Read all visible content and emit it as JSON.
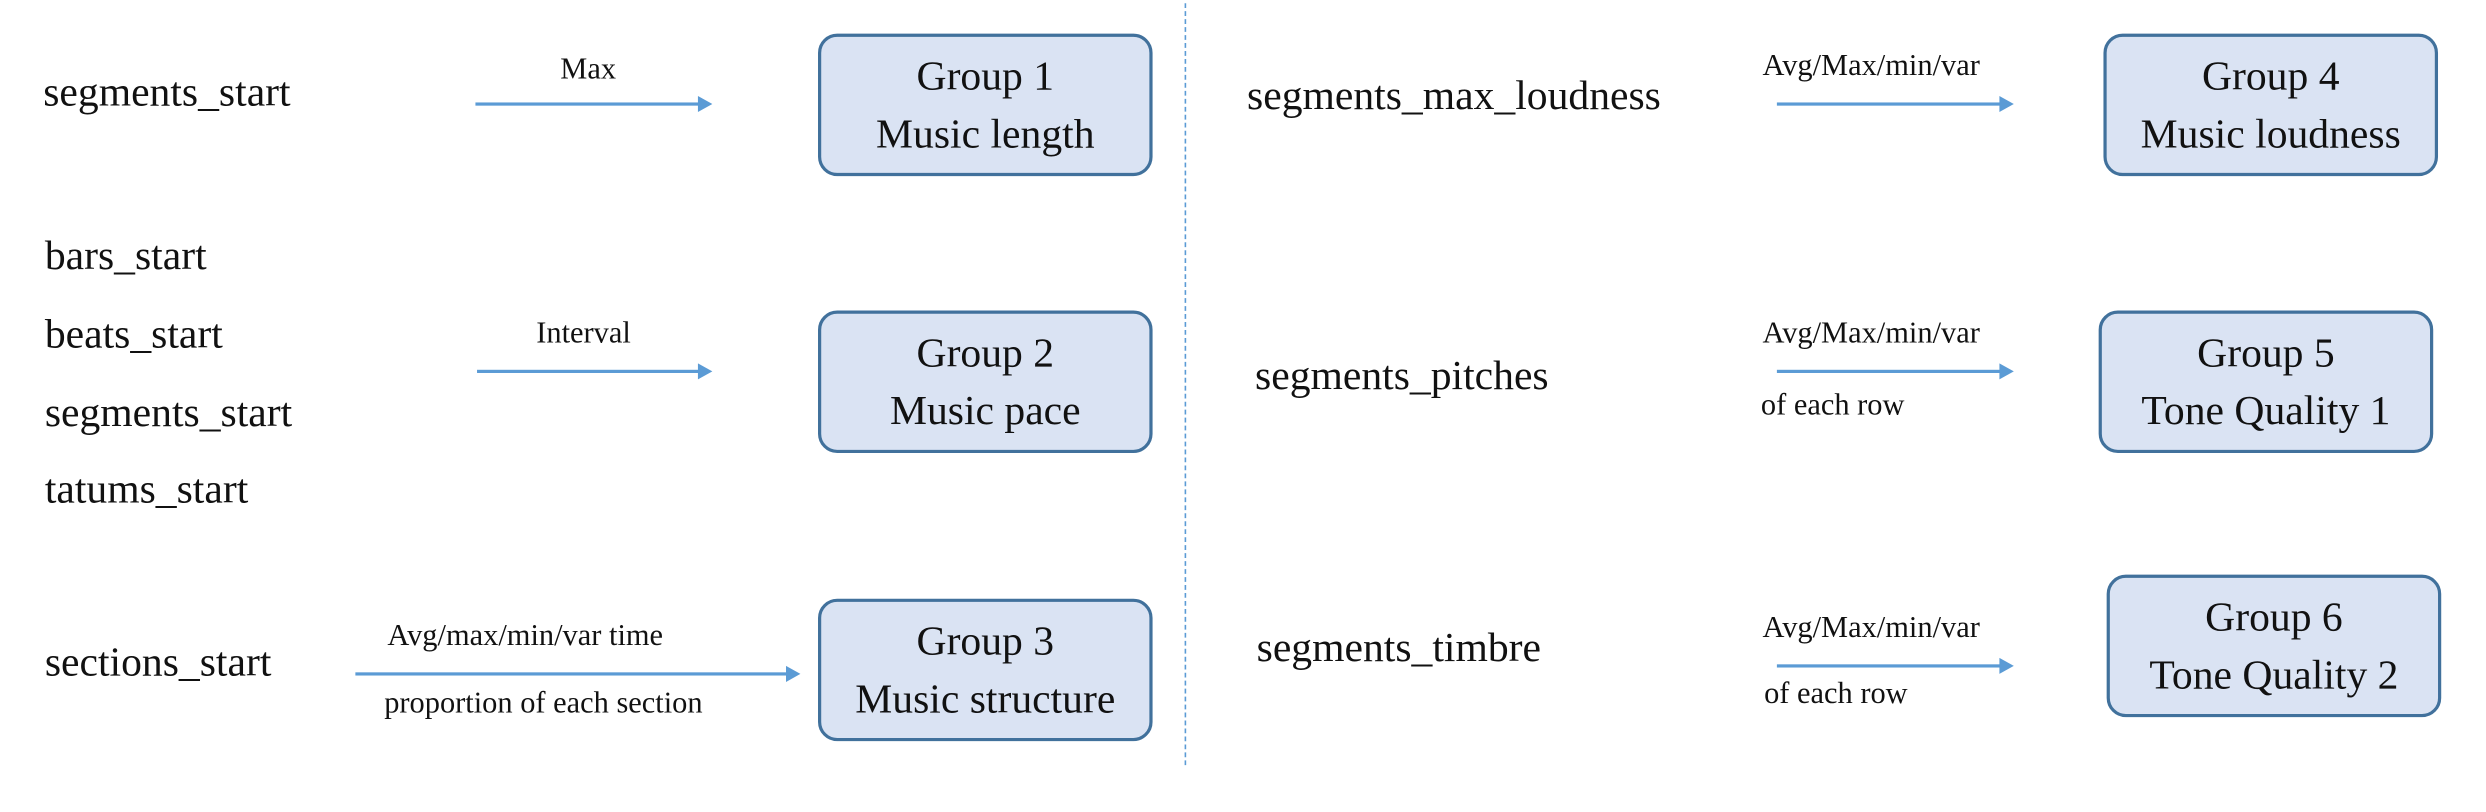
{
  "left_column": {
    "row1": {
      "features": [
        "segments_start"
      ],
      "operation": [
        "Max"
      ],
      "group": {
        "title": "Group 1",
        "subtitle": "Music length"
      }
    },
    "row2": {
      "features": [
        "bars_start",
        "beats_start",
        "segments_start",
        "tatums_start"
      ],
      "operation": [
        "Interval"
      ],
      "group": {
        "title": "Group 2",
        "subtitle": "Music pace"
      }
    },
    "row3": {
      "features": [
        "sections_start"
      ],
      "operation": [
        "Avg/max/min/var time",
        "proportion of each section"
      ],
      "group": {
        "title": "Group 3",
        "subtitle": "Music structure"
      }
    }
  },
  "right_column": {
    "row1": {
      "features": [
        "segments_max_loudness"
      ],
      "operation": [
        "Avg/Max/min/var"
      ],
      "group": {
        "title": "Group 4",
        "subtitle": "Music loudness"
      }
    },
    "row2": {
      "features": [
        "segments_pitches"
      ],
      "operation": [
        "Avg/Max/min/var",
        "of each row"
      ],
      "group": {
        "title": "Group 5",
        "subtitle": "Tone Quality 1"
      }
    },
    "row3": {
      "features": [
        "segments_timbre"
      ],
      "operation": [
        "Avg/Max/min/var",
        "of each row"
      ],
      "group": {
        "title": "Group 6",
        "subtitle": "Tone Quality 2"
      }
    }
  },
  "colors": {
    "box_fill": "#dae3f3",
    "box_border": "#41719c",
    "arrow": "#5b9bd5",
    "divider": "#5b9bd5"
  }
}
